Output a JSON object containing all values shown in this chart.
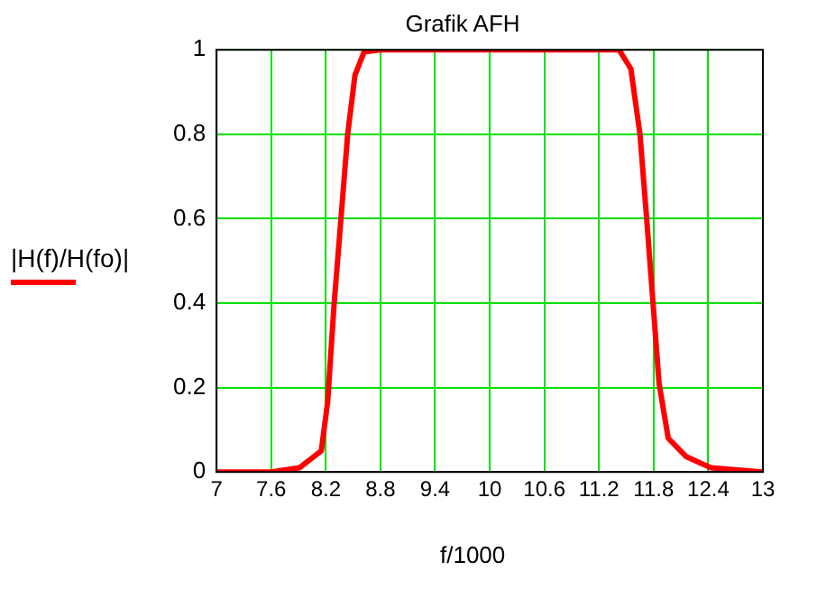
{
  "chart_data": {
    "type": "line",
    "title": "Grafik AFH",
    "xlabel": "f/1000",
    "x": [
      7,
      7.6,
      7.91,
      8.15,
      8.22,
      8.29,
      8.37,
      8.44,
      8.52,
      8.62,
      8.8,
      10,
      11.2,
      11.42,
      11.55,
      11.65,
      11.72,
      11.79,
      11.86,
      11.96,
      12.16,
      12.43,
      13
    ],
    "series": [
      {
        "name": "|H(f)/H(fo)|",
        "color": "#ff0000",
        "values": [
          0,
          0,
          0.01,
          0.05,
          0.165,
          0.395,
          0.61,
          0.8,
          0.94,
          0.995,
          1,
          1,
          1,
          1,
          0.955,
          0.8,
          0.61,
          0.41,
          0.21,
          0.08,
          0.036,
          0.01,
          0
        ]
      }
    ],
    "xlim": [
      7,
      13
    ],
    "xticks": [
      7,
      7.6,
      8.2,
      8.8,
      9.4,
      10,
      10.6,
      11.2,
      11.8,
      12.4,
      13
    ],
    "ylim": [
      0,
      1
    ],
    "yticks": [
      0,
      0.2,
      0.4,
      0.6,
      0.8,
      1
    ],
    "grid": true,
    "legend": "left",
    "marker": "none",
    "line_style": "solid"
  }
}
